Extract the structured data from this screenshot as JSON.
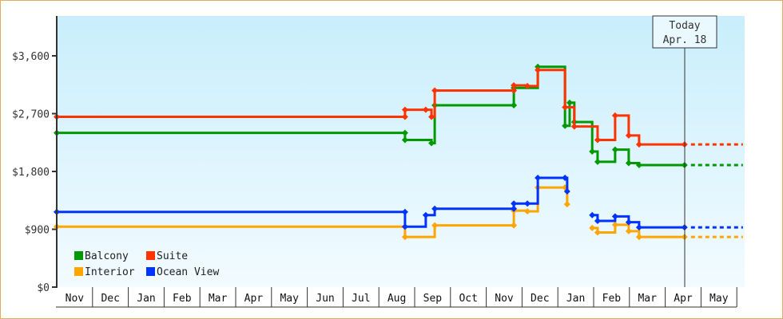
{
  "chart_data": {
    "type": "line",
    "title": "",
    "xlabel": "",
    "ylabel": "",
    "ylim": [
      0,
      4400
    ],
    "y_ticks": [
      {
        "value": 0,
        "label": "$0"
      },
      {
        "value": 900,
        "label": "$900"
      },
      {
        "value": 1800,
        "label": "$1,800"
      },
      {
        "value": 2700,
        "label": "$2,700"
      },
      {
        "value": 3600,
        "label": "$3,600"
      }
    ],
    "x_unit": "month index from start of Nov",
    "categories": [
      "Nov",
      "Dec",
      "Jan",
      "Feb",
      "Mar",
      "Apr",
      "May",
      "Jun",
      "Jul",
      "Aug",
      "Sep",
      "Oct",
      "Nov",
      "Dec",
      "Jan",
      "Feb",
      "Mar",
      "Apr",
      "May"
    ],
    "today": {
      "label": "Today",
      "date": "Apr. 18",
      "x": 17.54
    },
    "projection_end_x": 19.17,
    "legend": "bottom-left",
    "series": [
      {
        "name": "Balcony",
        "color": "#009900",
        "points": [
          [
            0,
            2400
          ],
          [
            9.73,
            2400
          ],
          [
            9.73,
            2290
          ],
          [
            10.47,
            2240
          ],
          [
            10.56,
            2830
          ],
          [
            12.77,
            2830
          ],
          [
            12.77,
            3100
          ],
          [
            13.44,
            3430
          ],
          [
            14.2,
            2510
          ],
          [
            14.33,
            2870
          ],
          [
            14.46,
            2570
          ],
          [
            14.96,
            2110
          ],
          [
            15.11,
            1950
          ],
          [
            15.6,
            2140
          ],
          [
            15.98,
            1930
          ],
          [
            16.27,
            1900
          ],
          [
            17.54,
            1900
          ]
        ]
      },
      {
        "name": "Suite",
        "color": "#ff3300",
        "points": [
          [
            0,
            2650
          ],
          [
            9.73,
            2650
          ],
          [
            9.73,
            2760
          ],
          [
            10.31,
            2760
          ],
          [
            10.47,
            2650
          ],
          [
            10.56,
            3060
          ],
          [
            12.77,
            3060
          ],
          [
            12.77,
            3140
          ],
          [
            13.15,
            3130
          ],
          [
            13.44,
            3380
          ],
          [
            14.2,
            2800
          ],
          [
            14.46,
            2500
          ],
          [
            15.11,
            2290
          ],
          [
            15.6,
            2670
          ],
          [
            15.98,
            2360
          ],
          [
            16.27,
            2220
          ],
          [
            17.54,
            2220
          ]
        ]
      },
      {
        "name": "Interior",
        "color": "#ffa500",
        "points": [
          [
            0,
            940
          ],
          [
            9.73,
            940
          ],
          [
            9.73,
            780
          ],
          [
            10.56,
            960
          ],
          [
            12.77,
            960
          ],
          [
            12.77,
            1190
          ],
          [
            13.15,
            1180
          ],
          [
            13.44,
            1550
          ],
          [
            14.2,
            1550
          ],
          [
            14.26,
            1290
          ],
          null,
          [
            14.96,
            920
          ],
          [
            15.11,
            850
          ],
          [
            15.6,
            970
          ],
          [
            15.98,
            870
          ],
          [
            16.27,
            780
          ],
          [
            17.54,
            780
          ]
        ]
      },
      {
        "name": "Ocean View",
        "color": "#0033ff",
        "points": [
          [
            0,
            1170
          ],
          [
            9.73,
            1170
          ],
          [
            9.73,
            940
          ],
          [
            10.31,
            1120
          ],
          [
            10.56,
            1220
          ],
          [
            12.77,
            1220
          ],
          [
            12.77,
            1300
          ],
          [
            13.15,
            1300
          ],
          [
            13.44,
            1700
          ],
          [
            14.2,
            1700
          ],
          [
            14.26,
            1490
          ],
          null,
          [
            14.96,
            1120
          ],
          [
            15.11,
            1030
          ],
          [
            15.6,
            1100
          ],
          [
            15.98,
            1010
          ],
          [
            16.27,
            930
          ],
          [
            17.54,
            930
          ]
        ]
      }
    ]
  }
}
